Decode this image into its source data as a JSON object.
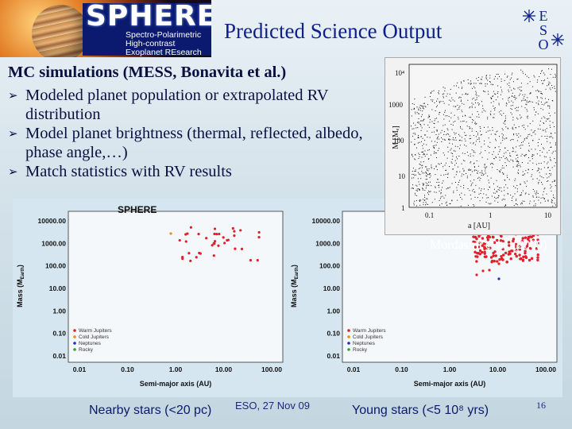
{
  "header": {
    "logo_name": "SPHERE",
    "logo_lines": [
      "Spectro-Polarimetric",
      "High-contrast",
      "Exoplanet REsearch"
    ],
    "title": "Predicted Science Output",
    "eso_logo": "ESO"
  },
  "body": {
    "heading": "MC simulations (MESS, Bonavita et al.)",
    "bullets": [
      "Modeled planet population or extrapolated RV distribution",
      "Model planet brightness (thermal, reflected, albedo, phase angle,…)",
      "Match statistics with RV results"
    ],
    "bullet_icon": "arrow-bullet-icon"
  },
  "inset_plot": {
    "ylabel": "M [Mₑ]",
    "xlabel": "a [AU]",
    "y_ticks": [
      "10⁴",
      "1000",
      "100",
      "10",
      "1"
    ],
    "x_ticks": [
      "0.1",
      "1",
      "10"
    ],
    "credit": "Mordasini et al. (2009)"
  },
  "plots": {
    "left": {
      "tag": "SPHERE",
      "y_ticks": [
        "10000.00",
        "1000.00",
        "100.00",
        "10.00",
        "1.00",
        "0.10",
        "0.01"
      ],
      "x_ticks": [
        "0.01",
        "0.10",
        "1.00",
        "10.00",
        "100.00"
      ],
      "ylabel": "Mass (M",
      "ylabel_sub": "Earth",
      "ylabel_close": ")",
      "xlabel": "Semi-major axis (AU)",
      "legend": [
        "Warm Jupiters",
        "Cold Jupiters",
        "Neptunes",
        "Rocky"
      ],
      "caption": "Nearby stars (<20 pc)"
    },
    "right": {
      "y_ticks": [
        "10000.00",
        "1000.00",
        "100.00",
        "10.00",
        "1.00",
        "0.10",
        "0.01"
      ],
      "x_ticks": [
        "0.01",
        "0.10",
        "1.00",
        "10.00",
        "100.00"
      ],
      "ylabel": "Mass (M",
      "ylabel_sub": "Earth",
      "ylabel_close": ")",
      "xlabel": "Semi-major axis (AU)",
      "legend": [
        "Warm Jupiters",
        "Cold Jupiters",
        "Neptunes",
        "Rocky"
      ],
      "caption": "Young stars (<5 10⁸ yrs)"
    },
    "legend_colors": [
      "#e0202a",
      "#f08a10",
      "#1a30c8",
      "#30a040"
    ]
  },
  "footer": {
    "date": "ESO, 27 Nov 09",
    "page": "16"
  }
}
